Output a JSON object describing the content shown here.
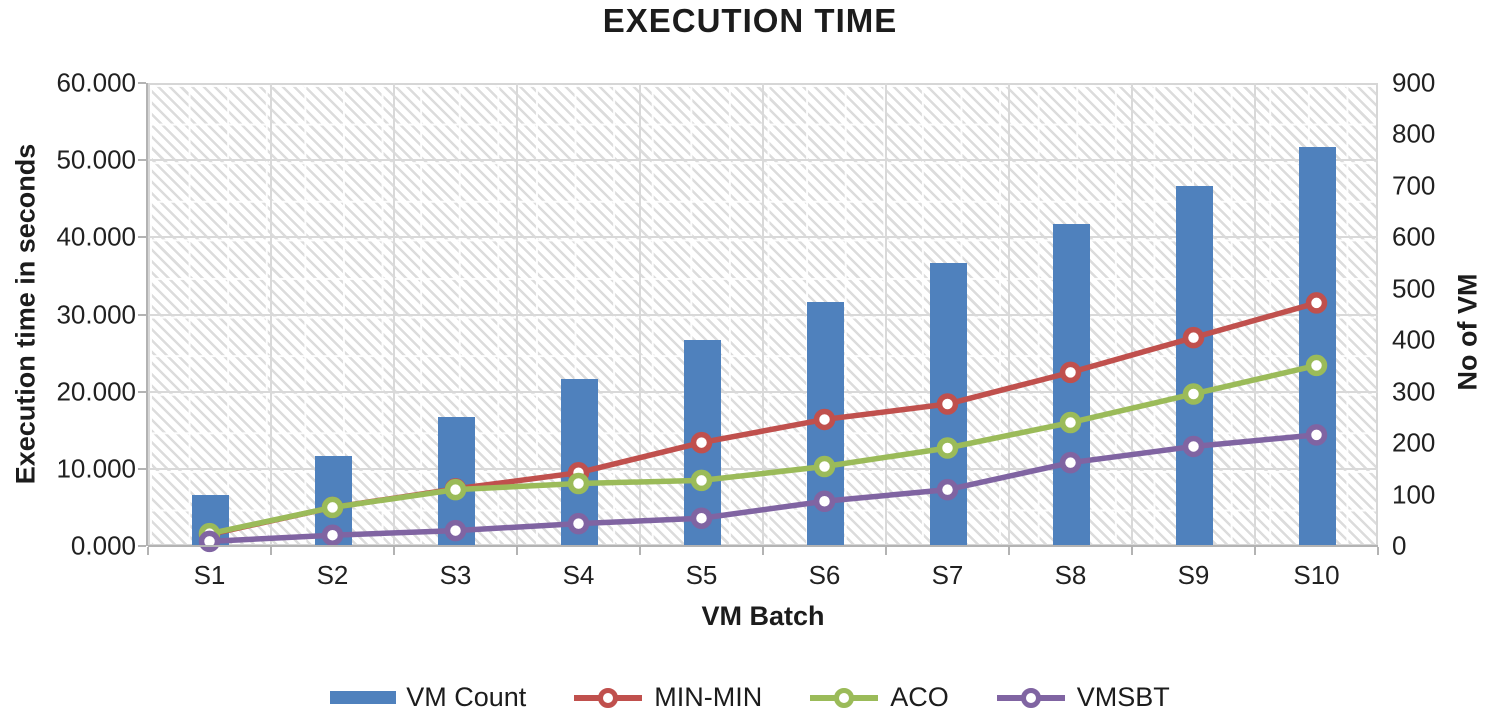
{
  "title": "EXECUTION TIME",
  "axes": {
    "left_title": "Execution time in seconds",
    "right_title": "No of VM",
    "x_title": "VM Batch",
    "left_ticks": [
      "60.000",
      "50.000",
      "40.000",
      "30.000",
      "20.000",
      "10.000",
      "0.000"
    ],
    "right_ticks": [
      "900",
      "800",
      "700",
      "600",
      "500",
      "400",
      "300",
      "200",
      "100",
      "0"
    ]
  },
  "legend": [
    {
      "label": "VM Count",
      "type": "bar",
      "color": "#4F81BD"
    },
    {
      "label": "MIN-MIN",
      "type": "line",
      "color": "#C0504D"
    },
    {
      "label": "ACO",
      "type": "line",
      "color": "#9BBB59"
    },
    {
      "label": "VMSBT",
      "type": "line",
      "color": "#8064A2"
    }
  ],
  "chart_data": {
    "type": "combo-bar-line",
    "title": "EXECUTION TIME",
    "categories": [
      "S1",
      "S2",
      "S3",
      "S4",
      "S5",
      "S6",
      "S7",
      "S8",
      "S9",
      "S10"
    ],
    "series": [
      {
        "name": "VM Count",
        "type": "bar",
        "axis": "right",
        "color": "#4F81BD",
        "values": [
          100,
          175,
          250,
          325,
          400,
          475,
          550,
          625,
          700,
          775
        ]
      },
      {
        "name": "MIN-MIN",
        "type": "line",
        "axis": "left",
        "color": "#C0504D",
        "values": [
          1.5,
          5.0,
          7.4,
          9.5,
          13.4,
          16.4,
          18.4,
          22.5,
          27.0,
          31.5
        ]
      },
      {
        "name": "ACO",
        "type": "line",
        "axis": "left",
        "color": "#9BBB59",
        "values": [
          1.6,
          5.0,
          7.3,
          8.1,
          8.5,
          10.3,
          12.7,
          16.0,
          19.7,
          23.4
        ]
      },
      {
        "name": "VMSBT",
        "type": "line",
        "axis": "left",
        "color": "#8064A2",
        "values": [
          0.6,
          1.4,
          2.0,
          2.9,
          3.6,
          5.8,
          7.3,
          10.8,
          12.9,
          14.4
        ]
      }
    ],
    "left_axis": {
      "label": "Execution time in seconds",
      "min": 0,
      "max": 60,
      "major_step": 10,
      "tick_format": "0.000"
    },
    "right_axis": {
      "label": "No of VM",
      "min": 0,
      "max": 900,
      "major_step": 100
    },
    "xlabel": "VM Batch",
    "grid": true,
    "plot_fill": "diagonal-hatch",
    "legend_position": "bottom"
  }
}
